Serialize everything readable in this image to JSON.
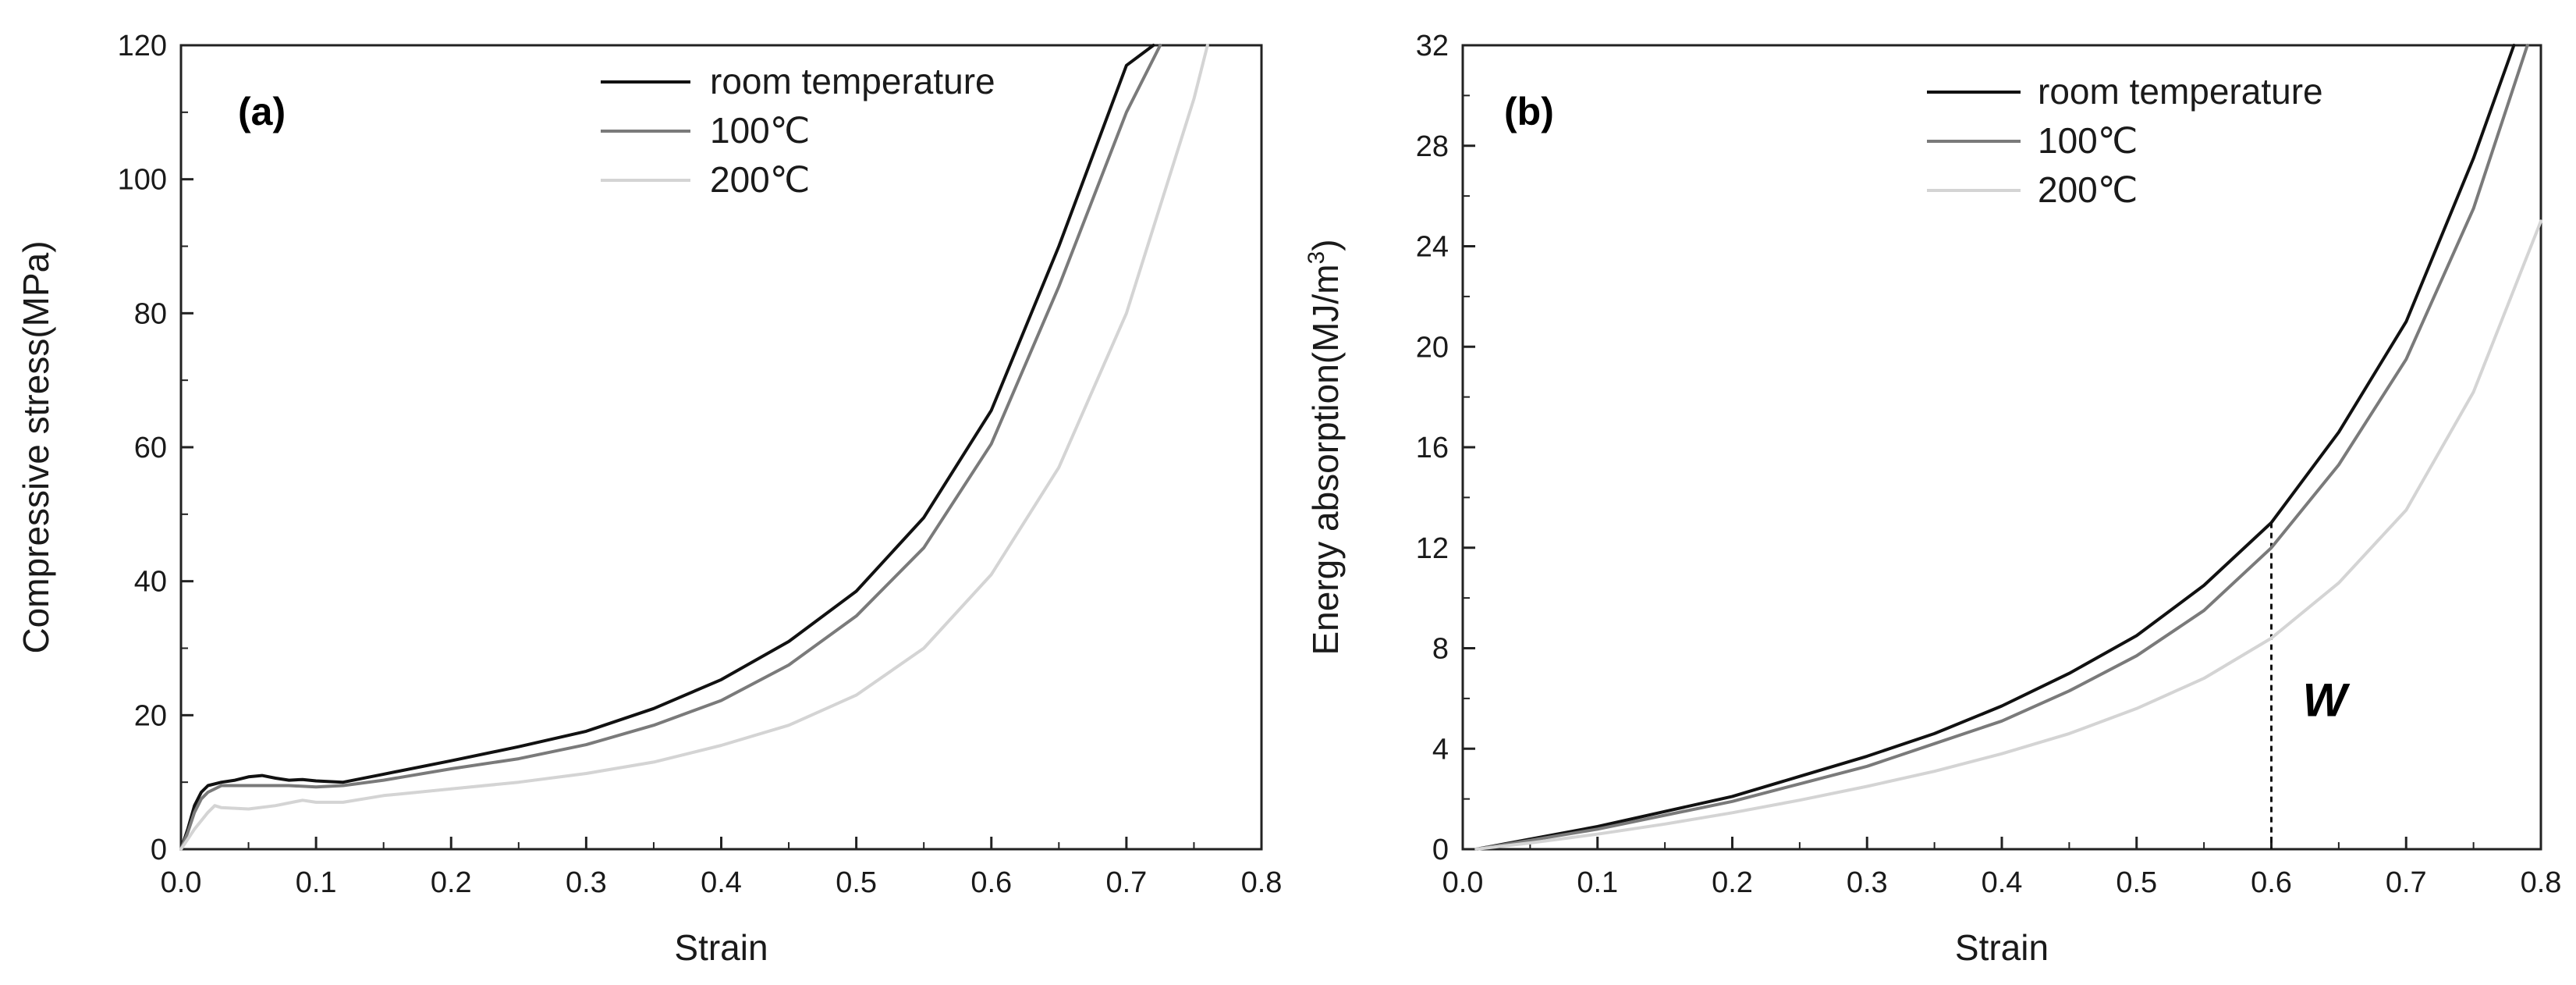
{
  "chart_data": [
    {
      "type": "line",
      "panel_label": "(a)",
      "xlabel": "Strain",
      "ylabel": "Compressive stress(MPa)",
      "xlim": [
        0.0,
        0.8
      ],
      "ylim": [
        0,
        120
      ],
      "xticks": [
        "0.0",
        "0.1",
        "0.2",
        "0.3",
        "0.4",
        "0.5",
        "0.6",
        "0.7",
        "0.8"
      ],
      "yticks": [
        "0",
        "20",
        "40",
        "60",
        "80",
        "100",
        "120"
      ],
      "legend_position": "top-right",
      "series": [
        {
          "name": "room temperature",
          "color": "#111111",
          "x": [
            0,
            0.005,
            0.01,
            0.015,
            0.02,
            0.03,
            0.04,
            0.05,
            0.06,
            0.07,
            0.08,
            0.09,
            0.1,
            0.12,
            0.15,
            0.2,
            0.25,
            0.3,
            0.35,
            0.4,
            0.45,
            0.5,
            0.55,
            0.6,
            0.65,
            0.7,
            0.72
          ],
          "y": [
            0,
            3,
            6.5,
            8.5,
            9.5,
            10,
            10.3,
            10.8,
            11,
            10.6,
            10.3,
            10.4,
            10.2,
            10,
            11.2,
            13.2,
            15.3,
            17.6,
            21,
            25.3,
            31,
            38.5,
            49.5,
            65.5,
            90,
            117,
            120
          ]
        },
        {
          "name": "100℃",
          "color": "#7a7a7a",
          "x": [
            0,
            0.005,
            0.01,
            0.015,
            0.02,
            0.03,
            0.05,
            0.08,
            0.1,
            0.12,
            0.15,
            0.2,
            0.25,
            0.3,
            0.35,
            0.4,
            0.45,
            0.5,
            0.55,
            0.6,
            0.65,
            0.7,
            0.725
          ],
          "y": [
            0,
            2.5,
            5.5,
            7.5,
            8.5,
            9.5,
            9.5,
            9.5,
            9.3,
            9.5,
            10.3,
            12,
            13.5,
            15.6,
            18.5,
            22.2,
            27.5,
            34.8,
            45,
            60.5,
            84,
            110,
            120
          ]
        },
        {
          "name": "200℃",
          "color": "#d4d4d4",
          "x": [
            0,
            0.005,
            0.01,
            0.02,
            0.025,
            0.03,
            0.05,
            0.07,
            0.09,
            0.1,
            0.12,
            0.15,
            0.2,
            0.25,
            0.3,
            0.35,
            0.4,
            0.45,
            0.5,
            0.55,
            0.6,
            0.65,
            0.7,
            0.75,
            0.76
          ],
          "y": [
            0,
            1.5,
            3,
            5.5,
            6.5,
            6.2,
            6,
            6.5,
            7.3,
            7,
            7,
            8,
            9,
            10,
            11.3,
            13,
            15.5,
            18.5,
            23,
            30,
            41,
            57,
            80,
            112,
            120
          ]
        }
      ]
    },
    {
      "type": "line",
      "panel_label": "(b)",
      "xlabel": "Strain",
      "ylabel": "Energy absorption(MJ/m3)",
      "xlim": [
        0.0,
        0.8
      ],
      "ylim": [
        0,
        32
      ],
      "xticks": [
        "0.0",
        "0.1",
        "0.2",
        "0.3",
        "0.4",
        "0.5",
        "0.6",
        "0.7",
        "0.8"
      ],
      "yticks": [
        "0",
        "4",
        "8",
        "12",
        "16",
        "20",
        "24",
        "28",
        "32"
      ],
      "legend_position": "top-right",
      "annotation": {
        "text": "W",
        "x_value": 0.6
      },
      "series": [
        {
          "name": "room temperature",
          "color": "#111111",
          "x": [
            0.01,
            0.05,
            0.1,
            0.15,
            0.2,
            0.25,
            0.3,
            0.35,
            0.4,
            0.45,
            0.5,
            0.55,
            0.6,
            0.65,
            0.7,
            0.75,
            0.78
          ],
          "y": [
            0,
            0.4,
            0.9,
            1.5,
            2.1,
            2.9,
            3.7,
            4.6,
            5.7,
            7.0,
            8.5,
            10.5,
            13.0,
            16.6,
            21.0,
            27.5,
            32
          ]
        },
        {
          "name": "100℃",
          "color": "#7a7a7a",
          "x": [
            0.01,
            0.05,
            0.1,
            0.15,
            0.2,
            0.25,
            0.3,
            0.35,
            0.4,
            0.45,
            0.5,
            0.55,
            0.6,
            0.65,
            0.7,
            0.75,
            0.79
          ],
          "y": [
            0,
            0.35,
            0.8,
            1.35,
            1.9,
            2.6,
            3.3,
            4.2,
            5.1,
            6.3,
            7.7,
            9.5,
            12.0,
            15.3,
            19.5,
            25.5,
            32
          ]
        },
        {
          "name": "200℃",
          "color": "#d4d4d4",
          "x": [
            0.01,
            0.05,
            0.1,
            0.15,
            0.2,
            0.25,
            0.3,
            0.35,
            0.4,
            0.45,
            0.5,
            0.55,
            0.6,
            0.65,
            0.7,
            0.75,
            0.8
          ],
          "y": [
            0,
            0.25,
            0.6,
            1.0,
            1.45,
            1.95,
            2.5,
            3.1,
            3.8,
            4.6,
            5.6,
            6.8,
            8.4,
            10.6,
            13.5,
            18.2,
            25
          ]
        }
      ]
    }
  ]
}
